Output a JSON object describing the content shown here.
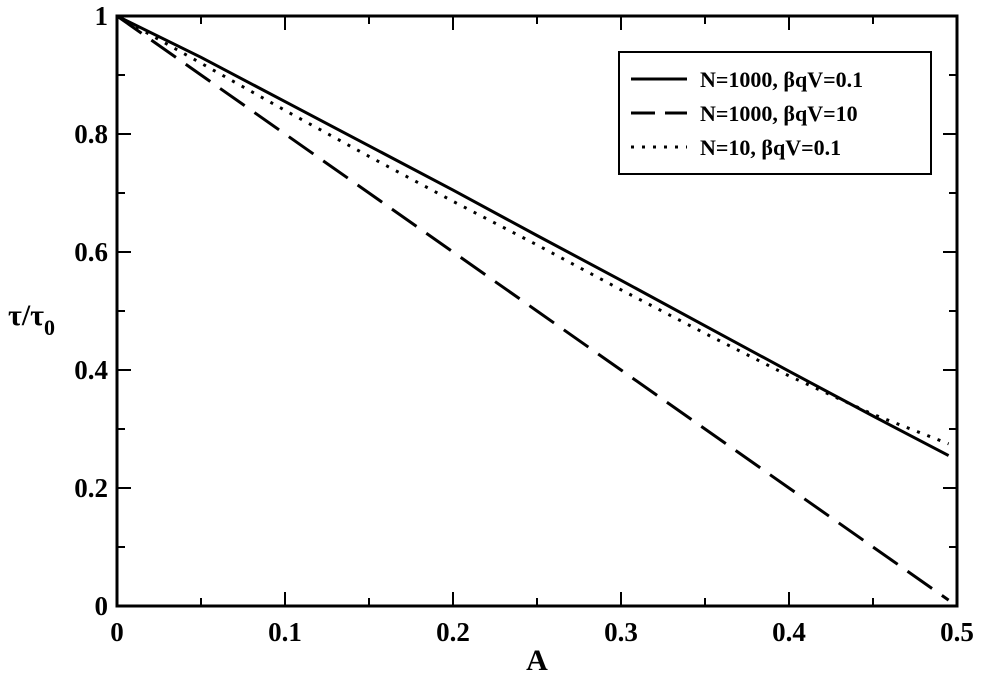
{
  "chart_data": {
    "type": "line",
    "xlabel": "A",
    "ylabel_main": "τ/τ",
    "ylabel_sub": "0",
    "xlim": [
      0,
      0.5
    ],
    "ylim": [
      0,
      1
    ],
    "x_ticks": [
      0,
      0.1,
      0.2,
      0.3,
      0.4,
      0.5
    ],
    "x_tick_labels": [
      "0",
      "0.1",
      "0.2",
      "0.3",
      "0.4",
      "0.5"
    ],
    "y_ticks": [
      0,
      0.2,
      0.4,
      0.6,
      0.8,
      1
    ],
    "y_tick_labels": [
      "0",
      "0.2",
      "0.4",
      "0.6",
      "0.8",
      "1"
    ],
    "grid": false,
    "legend_position": "top-right",
    "series": [
      {
        "name": "N=1000, βqV=0.1",
        "style": "solid",
        "color": "#000000",
        "x": [
          0,
          0.05,
          0.1,
          0.15,
          0.2,
          0.25,
          0.3,
          0.35,
          0.4,
          0.45,
          0.495
        ],
        "y": [
          1.0,
          0.93,
          0.855,
          0.78,
          0.705,
          0.628,
          0.552,
          0.475,
          0.398,
          0.322,
          0.255
        ]
      },
      {
        "name": "N=1000, βqV=10",
        "style": "dashed",
        "color": "#000000",
        "x": [
          0,
          0.05,
          0.1,
          0.15,
          0.2,
          0.25,
          0.3,
          0.35,
          0.4,
          0.45,
          0.495
        ],
        "y": [
          1.0,
          0.9,
          0.8,
          0.7,
          0.6,
          0.5,
          0.4,
          0.3,
          0.2,
          0.1,
          0.01
        ]
      },
      {
        "name": "N=10, βqV=0.1",
        "style": "dotted",
        "color": "#000000",
        "x": [
          0,
          0.05,
          0.1,
          0.15,
          0.2,
          0.25,
          0.3,
          0.35,
          0.4,
          0.45,
          0.495
        ],
        "y": [
          1.0,
          0.92,
          0.84,
          0.762,
          0.686,
          0.612,
          0.536,
          0.462,
          0.39,
          0.325,
          0.275
        ]
      }
    ]
  }
}
